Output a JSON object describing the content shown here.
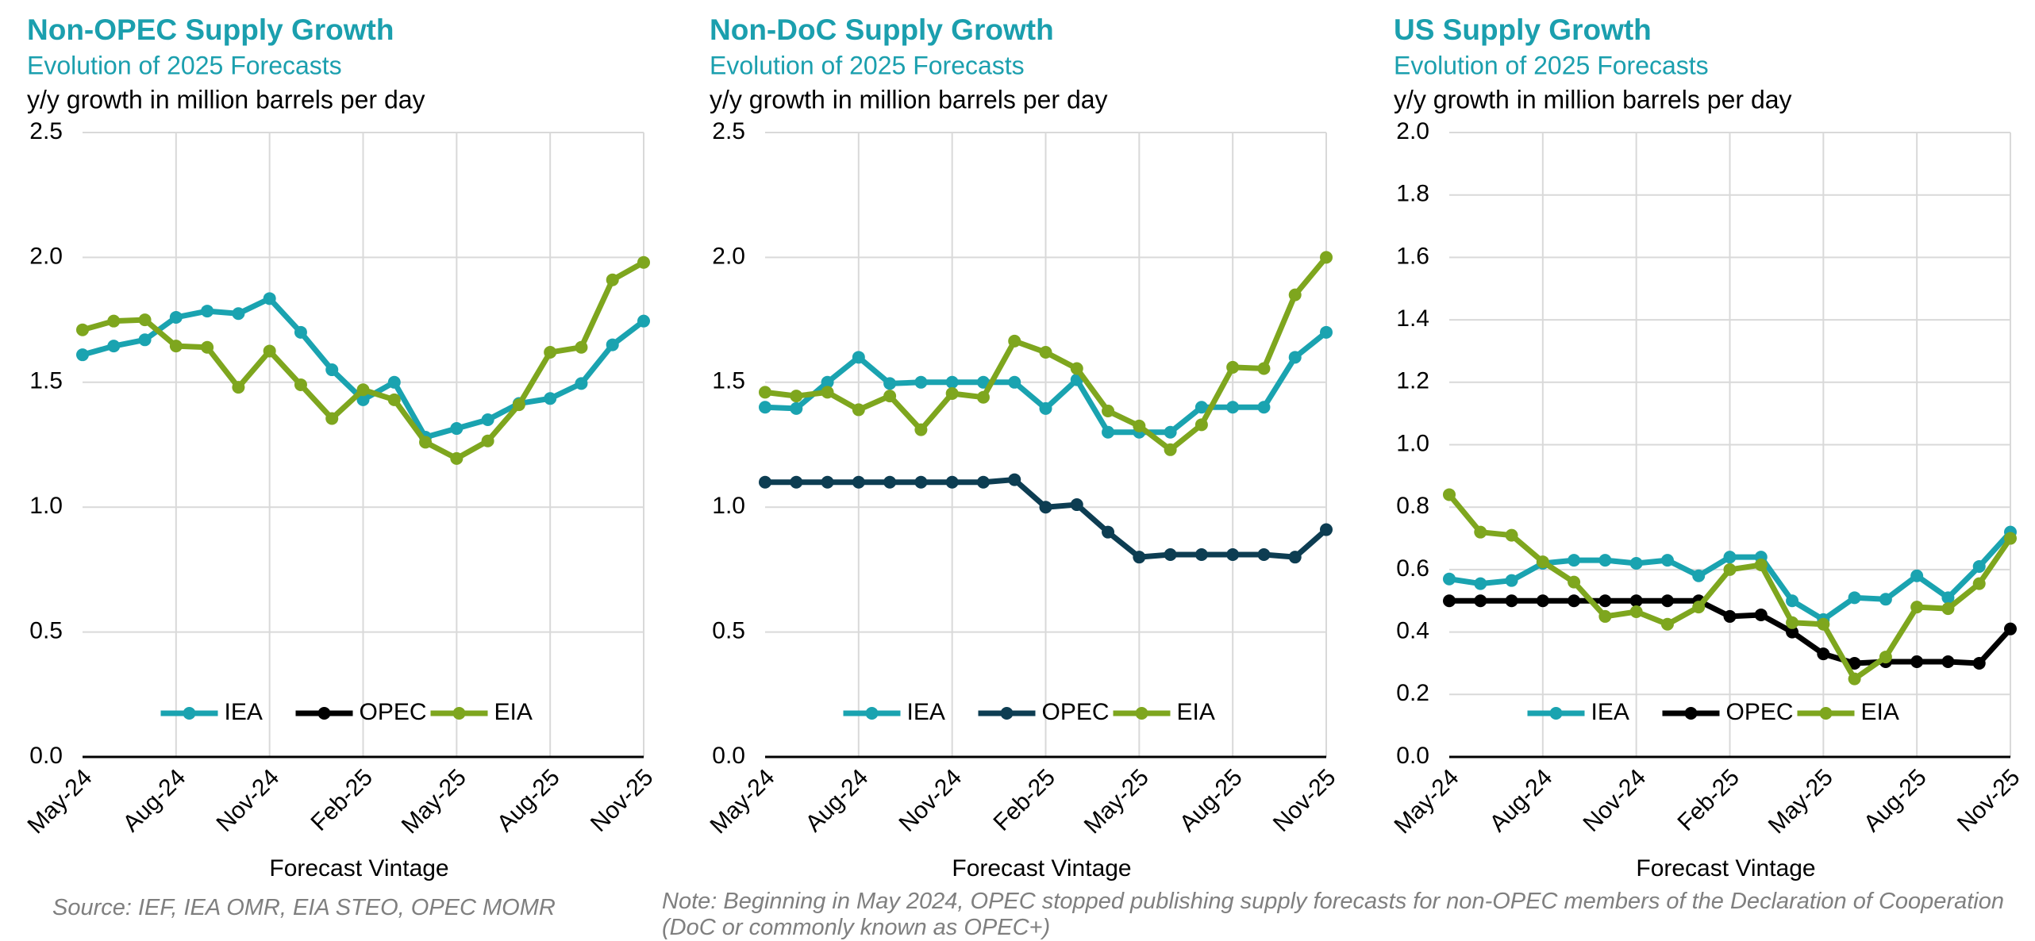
{
  "chart_data": [
    {
      "type": "line",
      "title": "Non-OPEC Supply Growth",
      "subtitle": "Evolution of 2025 Forecasts",
      "y_label": "y/y growth in million barrels per day",
      "x_label": "Forecast Vintage",
      "categories": [
        "May-24",
        null,
        null,
        "Aug-24",
        null,
        null,
        "Nov-24",
        null,
        null,
        "Feb-25",
        null,
        null,
        "May-25",
        null,
        null,
        "Aug-25",
        null,
        null,
        "Nov-25"
      ],
      "ylim": [
        0,
        2.5
      ],
      "yticks": [
        {
          "value": 0,
          "label": "0.0"
        },
        0.5,
        {
          "value": 1,
          "label": "1.0"
        },
        1.5,
        {
          "value": 2,
          "label": "2.0"
        },
        2.5
      ],
      "grid": true,
      "legend": "lower center",
      "series": [
        {
          "name": "IEA",
          "color": "#1aa3b0",
          "values": [
            1.61,
            1.645,
            1.67,
            1.76,
            1.785,
            1.775,
            1.835,
            1.7,
            1.55,
            1.43,
            1.5,
            1.28,
            1.315,
            1.35,
            1.415,
            1.435,
            1.495,
            1.65,
            1.745
          ]
        },
        {
          "name": "OPEC",
          "color": "#000000",
          "values": [
            null,
            null,
            null,
            null,
            null,
            null,
            null,
            null,
            null,
            null,
            null,
            null,
            null,
            null,
            null,
            null,
            null,
            null,
            null
          ]
        },
        {
          "name": "EIA",
          "color": "#7ea61e",
          "values": [
            1.71,
            1.745,
            1.75,
            1.645,
            1.64,
            1.48,
            1.625,
            1.49,
            1.355,
            1.47,
            1.43,
            1.26,
            1.195,
            1.265,
            1.41,
            1.62,
            1.64,
            1.91,
            1.98
          ]
        }
      ]
    },
    {
      "type": "line",
      "title": "Non-DoC Supply Growth",
      "subtitle": "Evolution of 2025 Forecasts",
      "y_label": "y/y growth in million barrels per day",
      "x_label": "Forecast Vintage",
      "categories": [
        "May-24",
        null,
        null,
        "Aug-24",
        null,
        null,
        "Nov-24",
        null,
        null,
        "Feb-25",
        null,
        null,
        "May-25",
        null,
        null,
        "Aug-25",
        null,
        null,
        "Nov-25"
      ],
      "ylim": [
        0,
        2.5
      ],
      "yticks": [
        {
          "value": 0,
          "label": "0.0"
        },
        0.5,
        {
          "value": 1,
          "label": "1.0"
        },
        1.5,
        {
          "value": 2,
          "label": "2.0"
        },
        2.5
      ],
      "grid": true,
      "legend": "lower center",
      "series": [
        {
          "name": "IEA",
          "color": "#1aa3b0",
          "values": [
            1.4,
            1.395,
            1.5,
            1.6,
            1.495,
            1.5,
            1.5,
            1.5,
            1.5,
            1.395,
            1.51,
            1.3,
            1.3,
            1.3,
            1.4,
            1.4,
            1.4,
            1.6,
            1.7
          ]
        },
        {
          "name": "OPEC",
          "color": "#0d3d52",
          "values": [
            1.1,
            1.1,
            1.1,
            1.1,
            1.1,
            1.1,
            1.1,
            1.1,
            1.11,
            1.0,
            1.01,
            0.9,
            0.8,
            0.81,
            0.81,
            0.81,
            0.81,
            0.8,
            0.91
          ]
        },
        {
          "name": "EIA",
          "color": "#7ea61e",
          "values": [
            1.46,
            1.445,
            1.46,
            1.39,
            1.445,
            1.31,
            1.455,
            1.44,
            1.665,
            1.62,
            1.555,
            1.385,
            1.325,
            1.23,
            1.33,
            1.56,
            1.555,
            1.85,
            2.0
          ]
        }
      ]
    },
    {
      "type": "line",
      "title": "US Supply Growth",
      "subtitle": "Evolution of 2025 Forecasts",
      "y_label": "y/y growth in million barrels per day",
      "x_label": "Forecast Vintage",
      "categories": [
        "May-24",
        null,
        null,
        "Aug-24",
        null,
        null,
        "Nov-24",
        null,
        null,
        "Feb-25",
        null,
        null,
        "May-25",
        null,
        null,
        "Aug-25",
        null,
        null,
        "Nov-25"
      ],
      "ylim": [
        0,
        2
      ],
      "yticks": [
        {
          "value": 0,
          "label": "0.0"
        },
        0.2,
        0.4,
        0.6,
        0.8,
        {
          "value": 1,
          "label": "1.0"
        },
        1.2,
        1.4,
        1.6,
        1.8,
        {
          "value": 2,
          "label": "2.0"
        }
      ],
      "grid": true,
      "legend": "lower center",
      "series": [
        {
          "name": "IEA",
          "color": "#1aa3b0",
          "values": [
            0.57,
            0.555,
            0.565,
            0.62,
            0.63,
            0.63,
            0.62,
            0.63,
            0.58,
            0.64,
            0.64,
            0.5,
            0.44,
            0.51,
            0.505,
            0.58,
            0.51,
            0.61,
            0.72
          ]
        },
        {
          "name": "OPEC",
          "color": "#000000",
          "values": [
            0.5,
            0.5,
            0.5,
            0.5,
            0.5,
            0.5,
            0.5,
            0.5,
            0.5,
            0.45,
            0.455,
            0.4,
            0.33,
            0.3,
            0.305,
            0.305,
            0.305,
            0.3,
            0.41
          ]
        },
        {
          "name": "EIA",
          "color": "#7ea61e",
          "values": [
            0.84,
            0.72,
            0.71,
            0.625,
            0.56,
            0.45,
            0.465,
            0.425,
            0.48,
            0.6,
            0.615,
            0.43,
            0.425,
            0.25,
            0.32,
            0.48,
            0.475,
            0.555,
            0.7
          ]
        }
      ]
    }
  ],
  "source": "Source: IEF, IEA OMR, EIA STEO, OPEC MOMR",
  "note": "Note: Beginning in May 2024, OPEC stopped publishing supply forecasts for non-OPEC members of the Declaration of Cooperation (DoC or commonly known as OPEC+)"
}
